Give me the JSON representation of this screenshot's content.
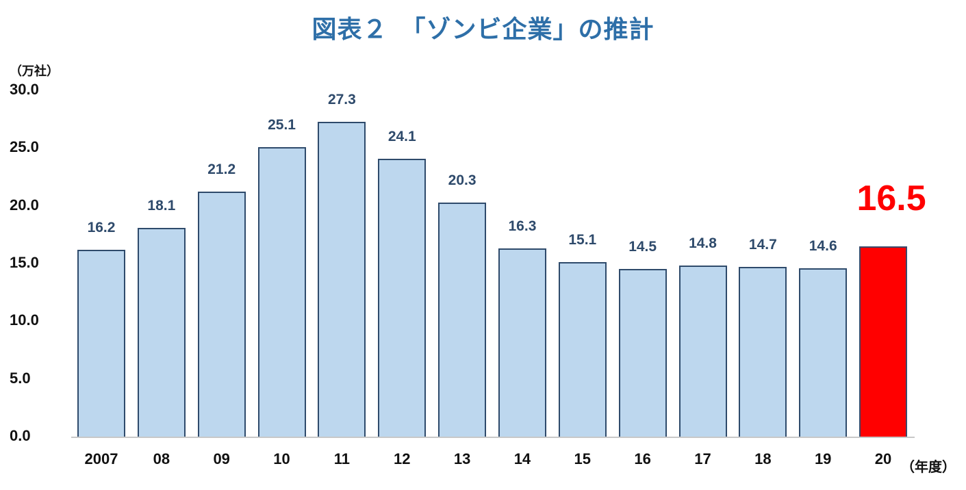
{
  "chart_data": {
    "type": "bar",
    "title": "図表２　「ゾンビ企業」の推計",
    "ylabel": "（万社）",
    "xlabel": "（年度）",
    "categories": [
      "2007",
      "08",
      "09",
      "10",
      "11",
      "12",
      "13",
      "14",
      "15",
      "16",
      "17",
      "18",
      "19",
      "20"
    ],
    "values": [
      16.2,
      18.1,
      21.2,
      25.1,
      27.3,
      24.1,
      20.3,
      16.3,
      15.1,
      14.5,
      14.8,
      14.7,
      14.6,
      16.5
    ],
    "value_labels": [
      "16.2",
      "18.1",
      "21.2",
      "25.1",
      "27.3",
      "24.1",
      "20.3",
      "16.3",
      "15.1",
      "14.5",
      "14.8",
      "14.7",
      "14.6",
      "16.5"
    ],
    "highlight_index": 13,
    "yticks": [
      "30.0",
      "25.0",
      "20.0",
      "15.0",
      "10.0",
      "5.0",
      "0.0"
    ],
    "ylim": [
      0,
      30
    ],
    "grid": false,
    "legend": null,
    "colors": {
      "bar": "#bdd7ee",
      "bar_border": "#2e4a6b",
      "highlight": "#ff0000",
      "title": "#2e6fa8",
      "label": "#2e4a6b"
    }
  }
}
